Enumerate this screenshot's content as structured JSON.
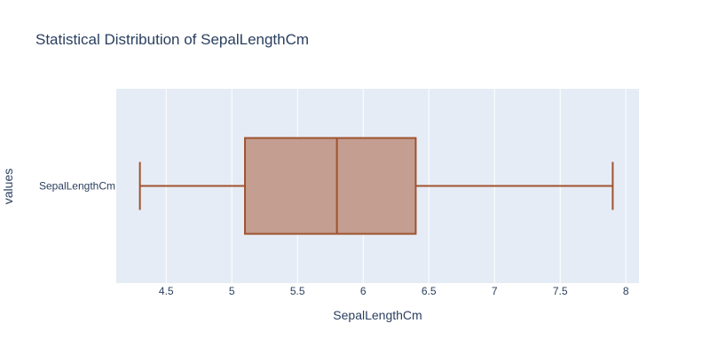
{
  "chart_data": {
    "type": "box",
    "title": "Statistical Distribution of SepalLengthCm",
    "xlabel": "SepalLengthCm",
    "ylabel": "values",
    "categories": [
      "SepalLengthCm"
    ],
    "xlim": [
      4.12,
      8.1
    ],
    "xticks": [
      4.5,
      5,
      5.5,
      6,
      6.5,
      7,
      7.5,
      8
    ],
    "xtick_labels": [
      "4.5",
      "5",
      "5.5",
      "6",
      "6.5",
      "7",
      "7.5",
      "8"
    ],
    "grid": true,
    "series": [
      {
        "min": 4.3,
        "q1": 5.1,
        "median": 5.8,
        "q3": 6.4,
        "max": 7.9
      }
    ],
    "colors": {
      "box_line": "#a0522d",
      "box_fill": "#c19a8b",
      "plot_bg": "#e5ecf6",
      "grid": "#ffffff",
      "text": "#2a3f5f"
    }
  }
}
